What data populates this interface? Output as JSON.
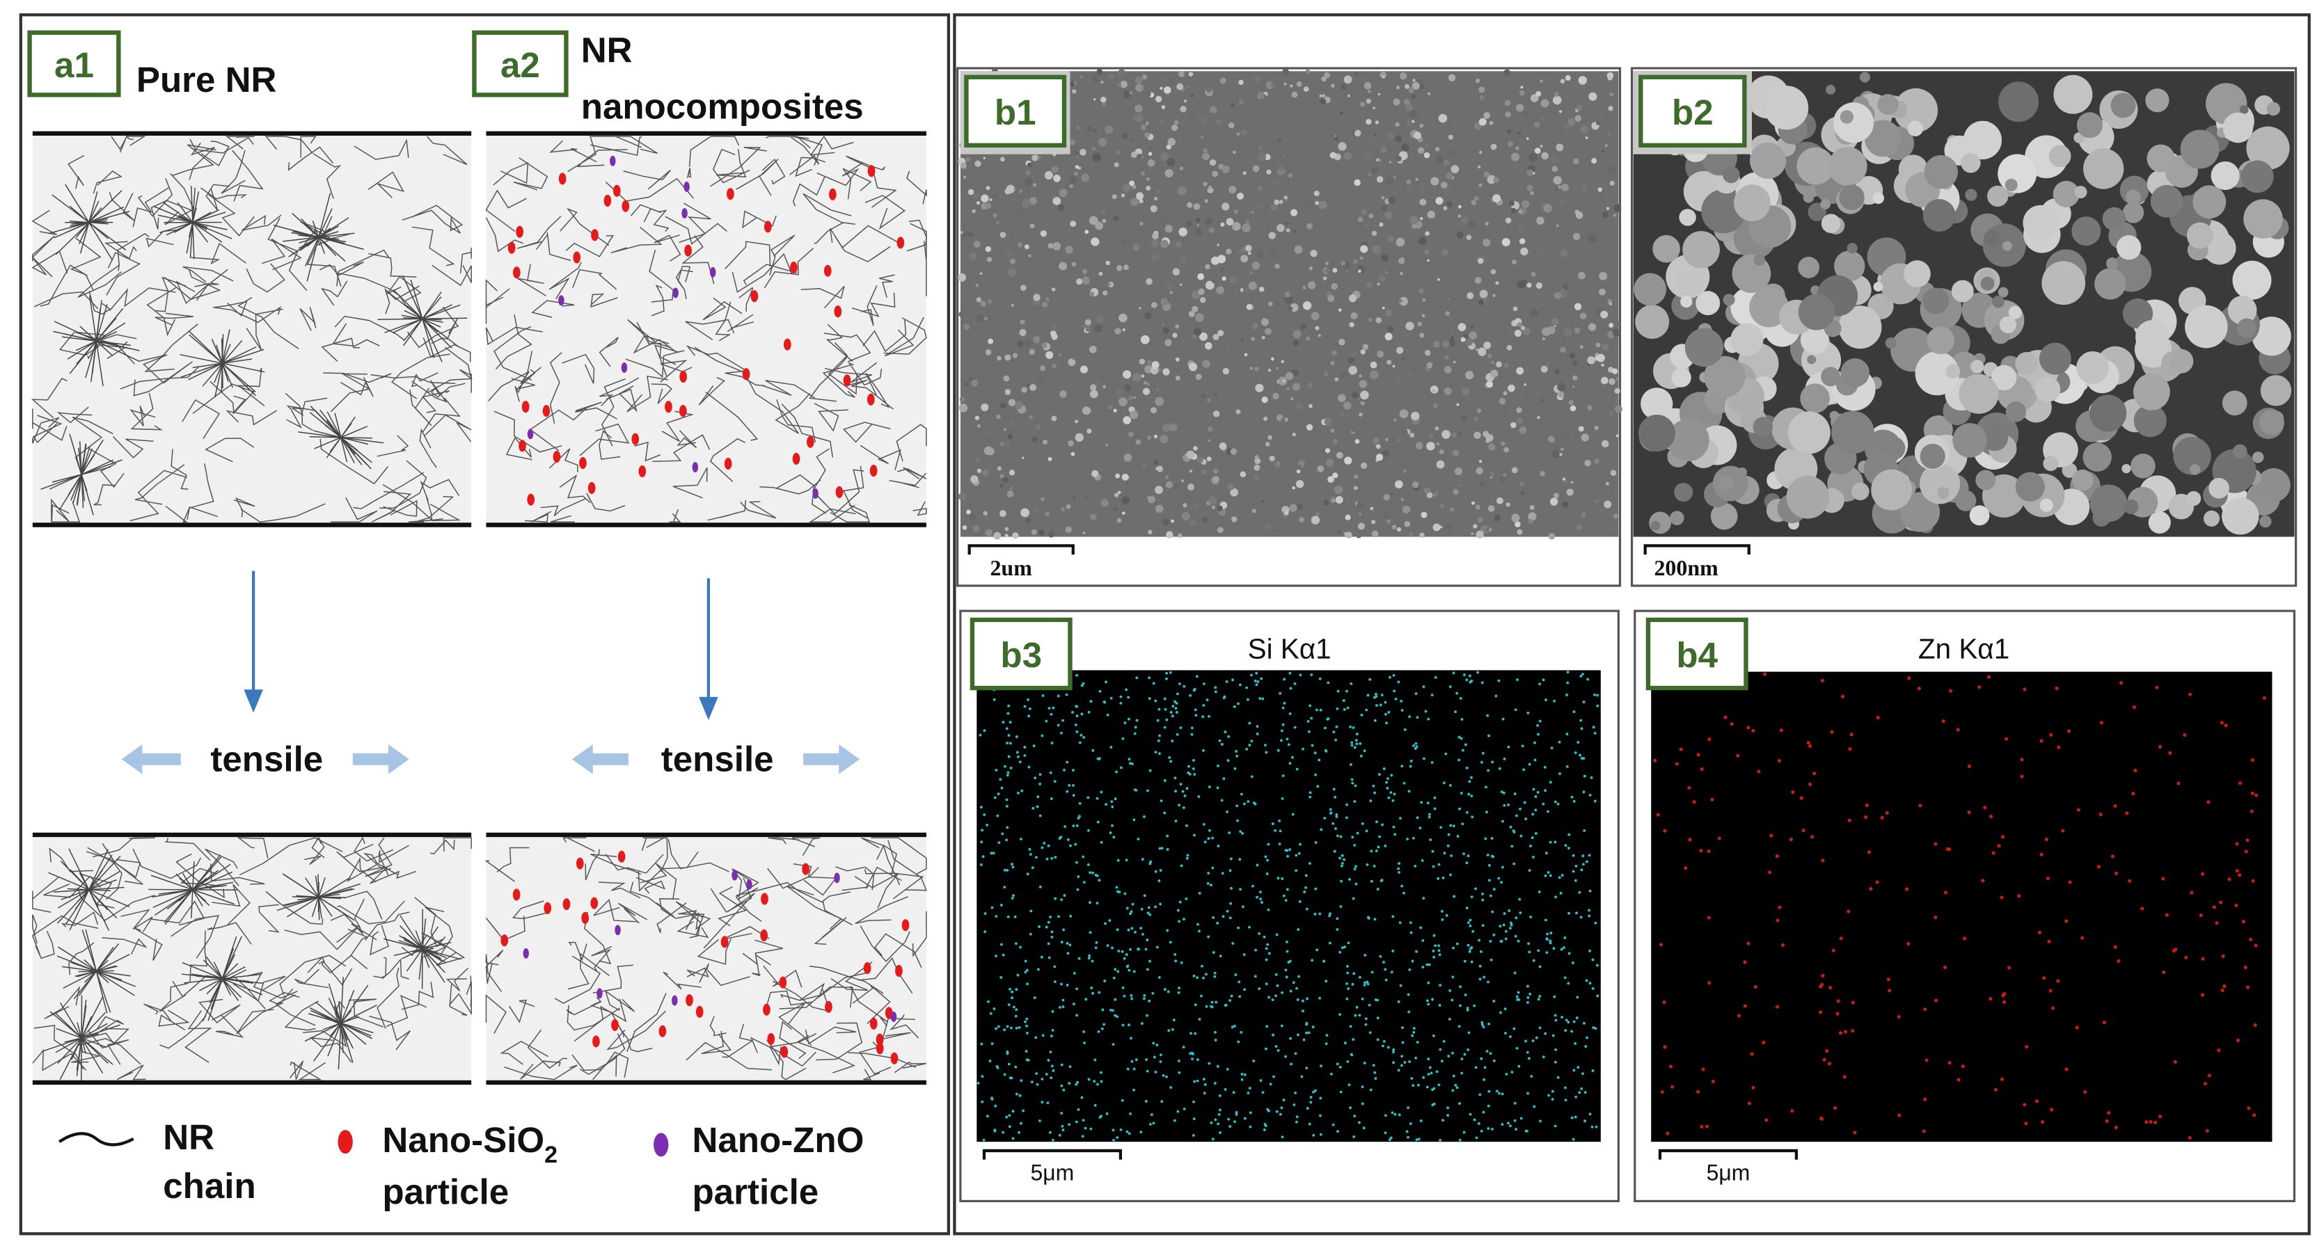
{
  "panels": {
    "a1": {
      "label": "a1",
      "title": "Pure NR"
    },
    "a2": {
      "label": "a2",
      "title_lines": [
        "NR",
        "nanocomposites"
      ]
    }
  },
  "tensile_labels": [
    "tensile",
    "tensile"
  ],
  "legend": [
    {
      "lines": [
        "NR",
        "chain"
      ]
    },
    {
      "lines": [
        {
          "text": "Nano-SiO",
          "sub": "2"
        },
        "particle"
      ]
    },
    {
      "lines": [
        "Nano-ZnO",
        "particle"
      ]
    }
  ],
  "images": [
    {
      "label": "b1",
      "scale_bar": "2um"
    },
    {
      "label": "b2",
      "scale_bar": "200nm"
    },
    {
      "label": "b3",
      "title": "Si Kα1",
      "scale_bar": "5μm"
    },
    {
      "label": "b4",
      "title": "Zn Kα1",
      "scale_bar": "5μm"
    }
  ]
}
